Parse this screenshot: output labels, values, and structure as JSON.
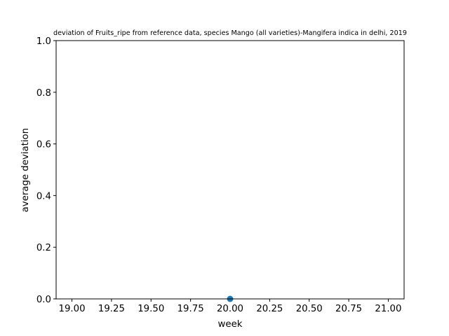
{
  "chart_data": {
    "type": "scatter",
    "title": "deviation of Fruits_ripe from reference data, species Mango (all varieties)-Mangifera indica in delhi, 2019",
    "xlabel": "week",
    "ylabel": "average deviation",
    "xlim": [
      18.9,
      21.1
    ],
    "ylim": [
      0,
      1
    ],
    "x_ticks": [
      "19.00",
      "19.25",
      "19.50",
      "19.75",
      "20.00",
      "20.25",
      "20.50",
      "20.75",
      "21.00"
    ],
    "y_ticks": [
      "0.0",
      "0.2",
      "0.4",
      "0.6",
      "0.8",
      "1.0"
    ],
    "grid": false,
    "series": [
      {
        "x": [
          20.0
        ],
        "y": [
          0.0
        ],
        "color": "#1f77b4"
      }
    ]
  }
}
